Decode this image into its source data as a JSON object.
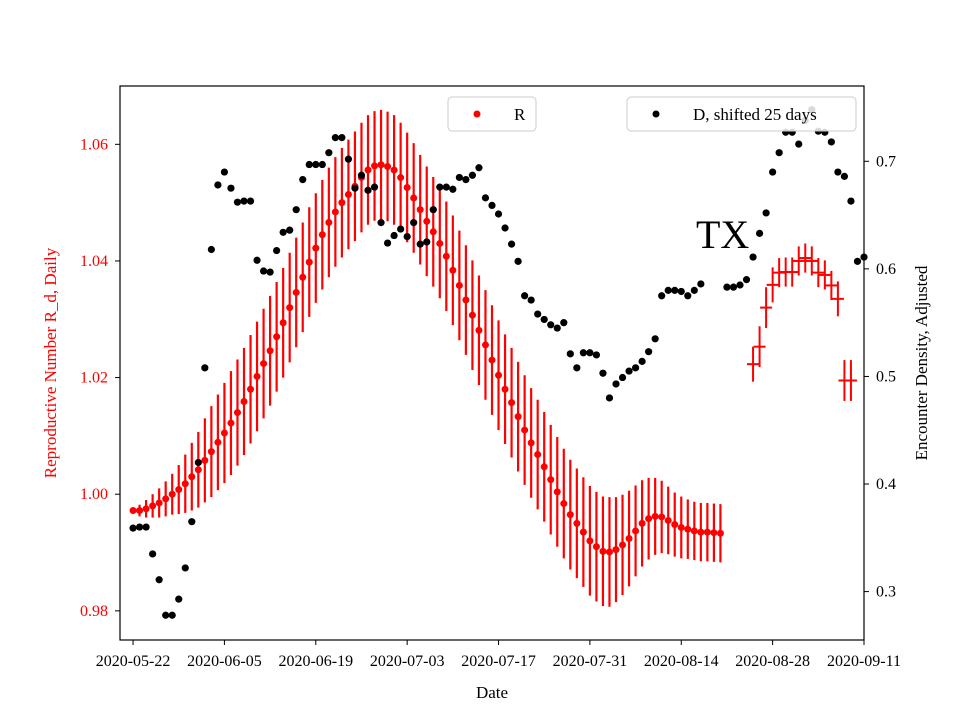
{
  "chart_data": {
    "type": "scatter",
    "annotation": "TX",
    "xlabel": "Date",
    "ylabel_left": "Reproductive Number R_d, Daily",
    "ylabel_right": "Encounter Density, Adjusted",
    "x_range": [
      "2020-05-20",
      "2020-09-11"
    ],
    "y_left_range": [
      0.975,
      1.07
    ],
    "y_right_range": [
      0.255,
      0.77
    ],
    "x_ticks": [
      "2020-05-22",
      "2020-06-05",
      "2020-06-19",
      "2020-07-03",
      "2020-07-17",
      "2020-07-31",
      "2020-08-14",
      "2020-08-28",
      "2020-09-11"
    ],
    "y_left_ticks": [
      0.98,
      1.0,
      1.02,
      1.04,
      1.06
    ],
    "y_left_tick_labels": [
      "0.98",
      "1.00",
      "1.02",
      "1.04",
      "1.06"
    ],
    "y_right_ticks": [
      0.3,
      0.4,
      0.5,
      0.6,
      0.7
    ],
    "y_right_tick_labels": [
      "0.3",
      "0.4",
      "0.5",
      "0.6",
      "0.7"
    ],
    "colors": {
      "R": "#ff0000",
      "D": "#000000"
    },
    "legend": [
      {
        "label": "R",
        "color": "#ff0000",
        "position": "top-center"
      },
      {
        "label": "D, shifted 25 days",
        "color": "#000000",
        "position": "top-right"
      }
    ],
    "series": [
      {
        "name": "R",
        "axis": "left",
        "marker": "dot",
        "start_date": "2020-05-22",
        "values": [
          0.9972,
          0.9972,
          0.9975,
          0.998,
          0.9985,
          0.9992,
          1.0,
          1.0008,
          1.0018,
          1.003,
          1.0042,
          1.0058,
          1.0073,
          1.0089,
          1.0105,
          1.0122,
          1.014,
          1.0159,
          1.018,
          1.0202,
          1.0224,
          1.0246,
          1.027,
          1.0294,
          1.032,
          1.0346,
          1.0372,
          1.0398,
          1.0422,
          1.0445,
          1.0466,
          1.0484,
          1.05,
          1.0514,
          1.0528,
          1.0543,
          1.0556,
          1.0563,
          1.0565,
          1.0562,
          1.0556,
          1.0543,
          1.0526,
          1.0508,
          1.0488,
          1.0468,
          1.045,
          1.043,
          1.0408,
          1.0384,
          1.0358,
          1.0333,
          1.0307,
          1.0281,
          1.0256,
          1.023,
          1.0204,
          1.018,
          1.0157,
          1.0133,
          1.011,
          1.0088,
          1.0068,
          1.0047,
          1.0025,
          1.0004,
          0.9984,
          0.9965,
          0.995,
          0.9935,
          0.992,
          0.991,
          0.9902,
          0.9901,
          0.9905,
          0.9913,
          0.9924,
          0.9937,
          0.995,
          0.9958,
          0.9962,
          0.9961,
          0.9955,
          0.9948,
          0.9943,
          0.994,
          0.9937,
          0.9935,
          0.9935,
          0.9934,
          0.9933
        ],
        "error_half_width": [
          0.0005,
          0.001,
          0.0015,
          0.002,
          0.0025,
          0.003,
          0.0035,
          0.0042,
          0.005,
          0.0058,
          0.0065,
          0.0072,
          0.0078,
          0.0082,
          0.0086,
          0.0089,
          0.0091,
          0.0092,
          0.0093,
          0.0094,
          0.0094,
          0.0094,
          0.0094,
          0.0094,
          0.0094,
          0.0094,
          0.0094,
          0.0094,
          0.0094,
          0.0094,
          0.0094,
          0.0094,
          0.0094,
          0.0094,
          0.0094,
          0.0094,
          0.0094,
          0.0094,
          0.0094,
          0.0094,
          0.0094,
          0.0094,
          0.0094,
          0.0094,
          0.0094,
          0.0094,
          0.0094,
          0.0094,
          0.0094,
          0.0094,
          0.0094,
          0.0094,
          0.0094,
          0.0094,
          0.0094,
          0.0094,
          0.0094,
          0.0094,
          0.0094,
          0.0094,
          0.0094,
          0.0094,
          0.0094,
          0.0094,
          0.0094,
          0.0094,
          0.0094,
          0.0094,
          0.0094,
          0.0094,
          0.0094,
          0.0094,
          0.0094,
          0.0094,
          0.009,
          0.0086,
          0.0082,
          0.0078,
          0.0074,
          0.007,
          0.0066,
          0.0062,
          0.0058,
          0.0055,
          0.0053,
          0.0051,
          0.005,
          0.005,
          0.005,
          0.005,
          0.005
        ]
      },
      {
        "name": "D, shifted 25 days",
        "axis": "right",
        "marker": "dot",
        "start_date": "2020-05-22",
        "values": [
          0.359,
          0.36,
          0.36,
          0.335,
          0.311,
          0.278,
          0.278,
          0.293,
          0.322,
          0.365,
          0.42,
          0.508,
          0.618,
          0.678,
          0.69,
          0.675,
          0.662,
          0.663,
          0.663,
          0.608,
          0.598,
          0.597,
          0.617,
          0.634,
          0.636,
          0.655,
          0.683,
          0.697,
          0.697,
          0.697,
          0.708,
          0.722,
          0.722,
          0.702,
          0.675,
          0.687,
          0.673,
          0.676,
          0.643,
          0.624,
          0.631,
          0.637,
          0.63,
          0.643,
          0.623,
          0.625,
          0.655,
          0.676,
          0.676,
          0.674,
          0.685,
          0.683,
          0.687,
          0.694,
          0.666,
          0.659,
          0.651,
          0.638,
          0.623,
          0.607,
          0.575,
          0.571,
          0.558,
          0.553,
          0.548,
          0.545,
          0.55,
          0.521,
          0.508,
          0.522,
          0.522,
          0.52,
          0.503,
          0.48,
          0.493,
          0.499,
          0.505,
          0.508,
          0.514,
          0.523,
          0.535,
          0.575,
          0.58,
          0.58,
          0.579,
          0.575,
          0.58,
          0.586
        ],
        "gap_after_index": 87,
        "continuation_start_date": "2020-08-21",
        "continuation_values": [
          0.583,
          0.583,
          0.585,
          0.59,
          0.611,
          0.633,
          0.652,
          0.69,
          0.708,
          0.727,
          0.727,
          0.716,
          0.738,
          0.748,
          0.728,
          0.727,
          0.718,
          0.69,
          0.686,
          0.663,
          0.607,
          0.611
        ]
      },
      {
        "name": "R_late",
        "axis": "left",
        "marker": "plus",
        "start_date": "2020-08-25",
        "values": [
          1.0223,
          1.0253,
          1.032,
          1.0359,
          1.038,
          1.0381,
          1.0381,
          1.04,
          1.0405,
          1.04,
          1.038,
          1.0376,
          1.0358,
          1.0335,
          1.0195,
          1.0195
        ],
        "error_half_width": [
          0.003,
          0.0035,
          0.0035,
          0.003,
          0.0025,
          0.0025,
          0.0025,
          0.0025,
          0.0025,
          0.0025,
          0.0025,
          0.0025,
          0.0025,
          0.003,
          0.0035,
          0.0035
        ]
      }
    ]
  }
}
